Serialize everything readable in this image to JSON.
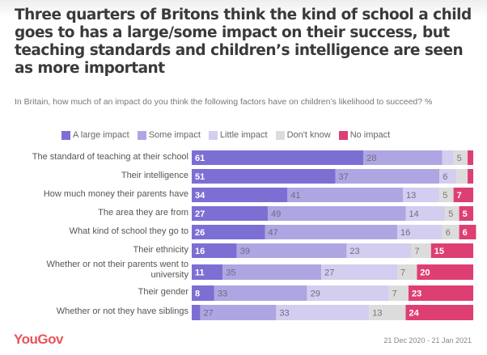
{
  "title": "Three quarters of Britons think the kind of school a child goes to has a large/some impact on their success, but teaching standards and children’s intelligence are seen as more important",
  "subtitle": "In Britain, how much of an impact do you think the following factors have on children’s likelihood to succeed? %",
  "footer": {
    "brand": "YouGov",
    "date_range": "21 Dec 2020 - 21 Jan 2021"
  },
  "chart_data": {
    "type": "bar",
    "orientation": "horizontal",
    "stacked": true,
    "title": "Three quarters of Britons think the kind of school a child goes to has a large/some impact on their success, but teaching standards and children’s intelligence are seen as more important",
    "xlabel": "",
    "ylabel": "",
    "xlim": [
      0,
      100
    ],
    "unit": "%",
    "legend_position": "top",
    "grid": false,
    "categories": [
      "The standard of teaching at their school",
      "Their intelligence",
      "How much money their parents have",
      "The area they are from",
      "What kind of school they go to",
      "Their ethnicity",
      "Whether or not their parents went to university",
      "Their gender",
      "Whether or not they have siblings"
    ],
    "series": [
      {
        "name": "A large impact",
        "color": "#7b6fd3",
        "label_color": "#ffffff",
        "values": [
          61,
          51,
          34,
          27,
          26,
          16,
          11,
          8,
          3
        ],
        "labels": [
          "61",
          "51",
          "34",
          "27",
          "26",
          "16",
          "11",
          "8",
          ""
        ]
      },
      {
        "name": "Some impact",
        "color": "#aea6e2",
        "label_color": "#6e6a86",
        "values": [
          28,
          37,
          41,
          49,
          47,
          39,
          35,
          33,
          27
        ],
        "labels": [
          "28",
          "37",
          "41",
          "49",
          "47",
          "39",
          "35",
          "33",
          "27"
        ]
      },
      {
        "name": "Little impact",
        "color": "#d3ceef",
        "label_color": "#6e6a86",
        "values": [
          4,
          6,
          13,
          14,
          16,
          23,
          27,
          29,
          33
        ],
        "labels": [
          "",
          "6",
          "13",
          "14",
          "16",
          "23",
          "27",
          "29",
          "33"
        ]
      },
      {
        "name": "Don't know",
        "color": "#dcdcdc",
        "label_color": "#777777",
        "values": [
          5,
          4,
          5,
          5,
          6,
          7,
          7,
          7,
          13
        ],
        "labels": [
          "5",
          "",
          "5",
          "5",
          "6",
          "7",
          "7",
          "7",
          "13"
        ]
      },
      {
        "name": "No impact",
        "color": "#de3f72",
        "label_color": "#ffffff",
        "values": [
          2,
          2,
          7,
          5,
          6,
          15,
          20,
          23,
          24
        ],
        "labels": [
          "",
          "",
          "7",
          "5",
          "6",
          "15",
          "20",
          "23",
          "24"
        ]
      }
    ]
  }
}
